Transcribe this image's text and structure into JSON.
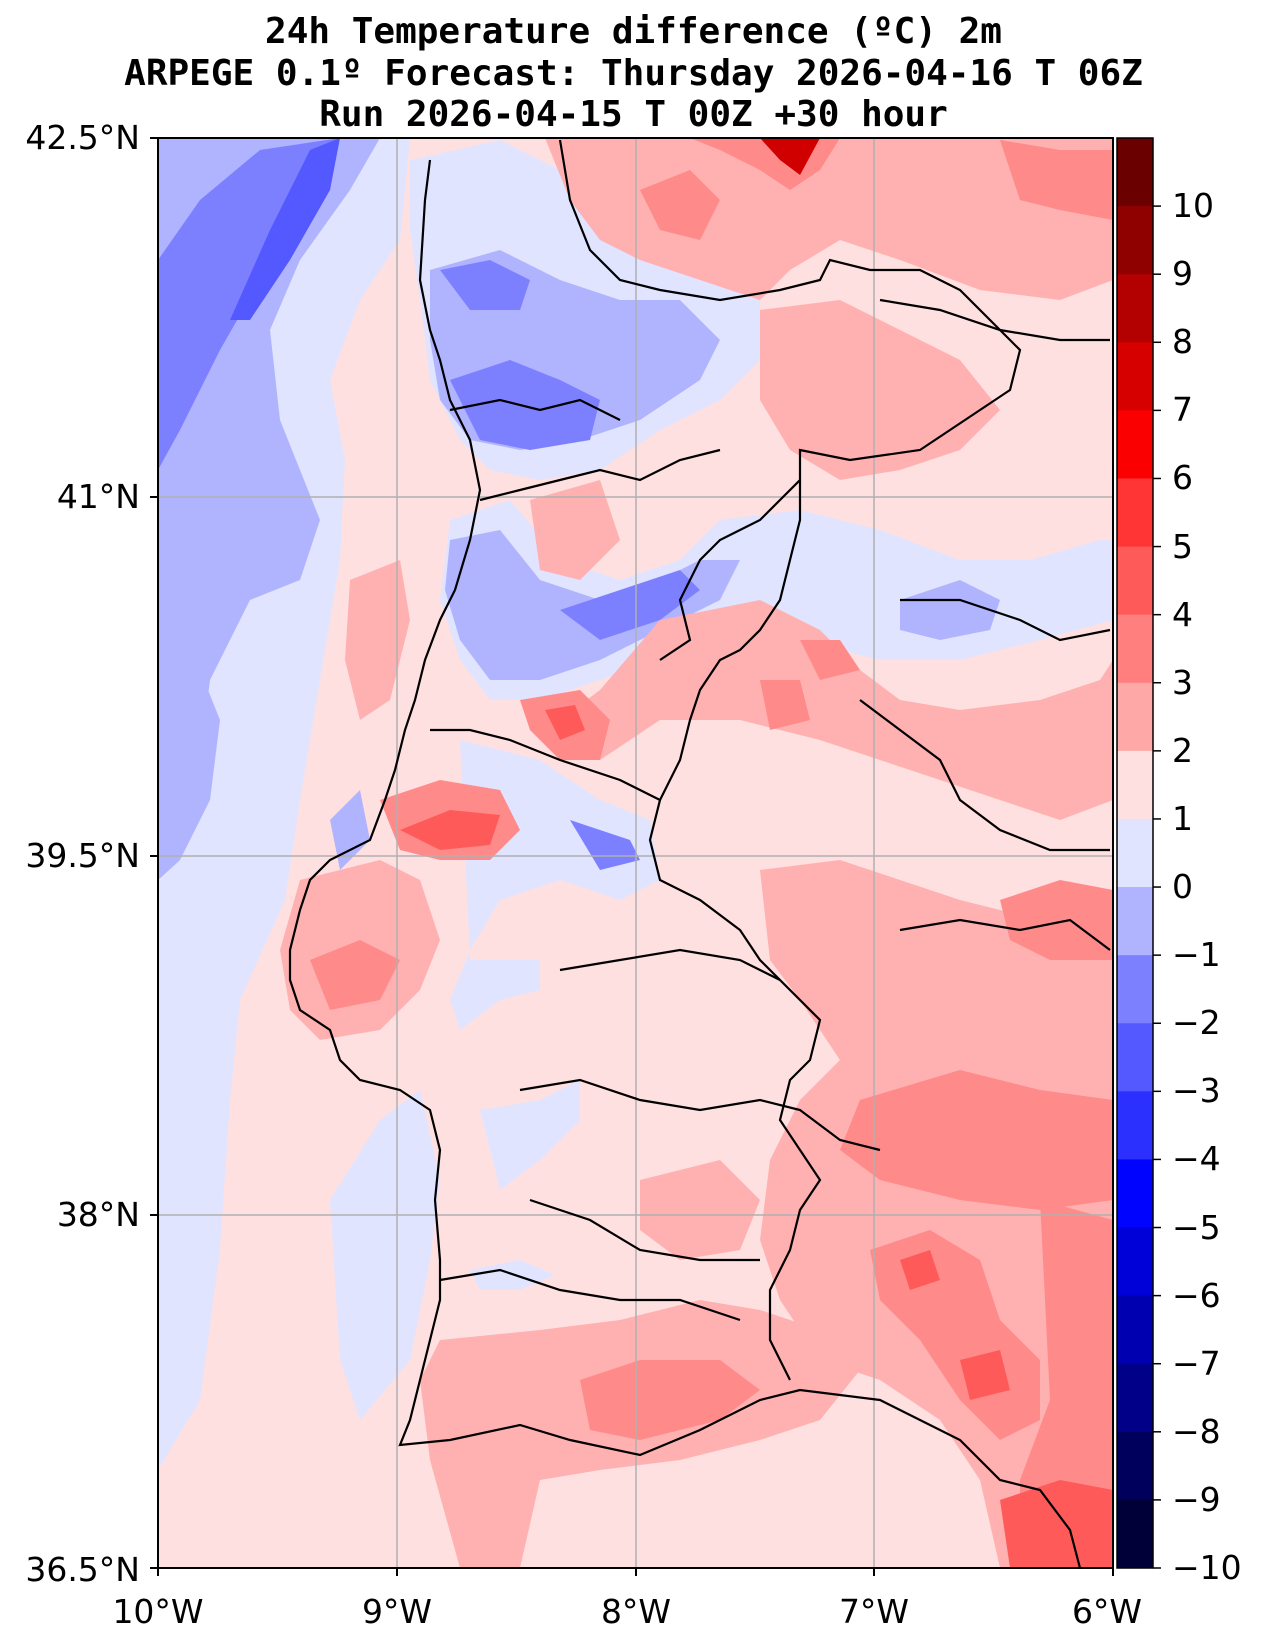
{
  "title": {
    "line1": "24h Temperature difference (ºC) 2m",
    "line2": "ARPEGE 0.1º Forecast: Thursday 2026-04-16 T 06Z",
    "line3": "Run 2026-04-15 T 00Z +30 hour"
  },
  "axes": {
    "lat_labels": [
      "42.5°N",
      "41°N",
      "39.5°N",
      "38°N",
      "36.5°N"
    ],
    "lon_labels": [
      "10°W",
      "9°W",
      "8°W",
      "7°W",
      "6°W"
    ]
  },
  "colorbar": {
    "ticks": [
      "10",
      "9",
      "8",
      "7",
      "6",
      "5",
      "4",
      "3",
      "2",
      "1",
      "0",
      "−1",
      "−2",
      "−3",
      "−4",
      "−5",
      "−6",
      "−7",
      "−8",
      "−9",
      "−10"
    ],
    "colors": [
      "#6b0000",
      "#8f0000",
      "#b30000",
      "#d60000",
      "#fa0000",
      "#ff3434",
      "#ff5a5a",
      "#ff7e7e",
      "#ffa8a8",
      "#ffe0e0",
      "#e0e4ff",
      "#b0b4ff",
      "#7c80ff",
      "#5458ff",
      "#2c30ff",
      "#0004ff",
      "#0000d8",
      "#0000b0",
      "#000088",
      "#00005c",
      "#000038"
    ]
  },
  "colors": {
    "weak_warm": "#ffe0e0",
    "warm1": "#ffb0b0",
    "warm2": "#ff8a8a",
    "warm3": "#ff5a5a",
    "hot": "#d00000",
    "weak_cool": "#e0e4ff",
    "cool1": "#b0b4ff",
    "cool2": "#7c80ff",
    "cool3": "#5458ff"
  }
}
